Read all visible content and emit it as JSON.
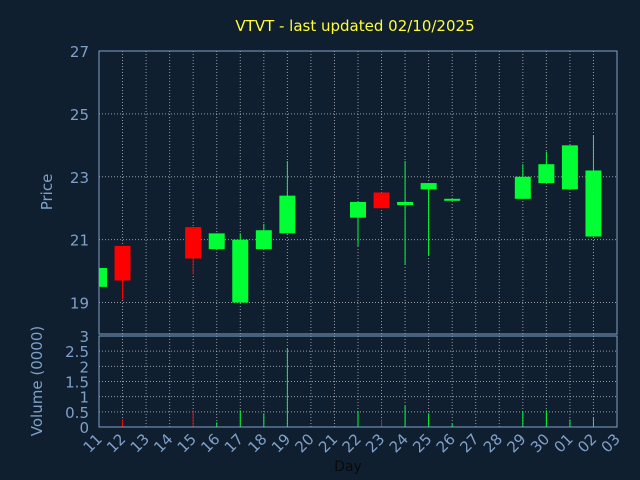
{
  "chart_data": {
    "type": "candlestick",
    "title": "VTVT - last updated 02/10/2025",
    "xlabel": "Day",
    "colors": {
      "background": "#0f1f30",
      "up": "#00ff33",
      "down": "#ff0000",
      "title": "#ffff33",
      "axis_text": "#7fa0c8",
      "xlabel": "#0a0a0a"
    },
    "x_ticks": [
      "11",
      "12",
      "13",
      "14",
      "15",
      "16",
      "17",
      "18",
      "19",
      "20",
      "21",
      "22",
      "23",
      "24",
      "25",
      "26",
      "27",
      "28",
      "29",
      "30",
      "01",
      "02",
      "03"
    ],
    "price": {
      "ylabel": "Price",
      "ylim": [
        18,
        27
      ],
      "y_ticks": [
        19,
        21,
        23,
        25,
        27
      ],
      "grid": true
    },
    "volume": {
      "ylabel": "Volume (0000)",
      "ylim": [
        0,
        3
      ],
      "y_ticks": [
        0,
        0.5,
        1,
        1.5,
        2,
        2.5,
        3
      ],
      "y_tick_labels": [
        "0",
        "0.5",
        "1",
        "1.5",
        "2",
        "2.5",
        "3"
      ],
      "grid": true
    },
    "candles": [
      {
        "day": "11",
        "open": 19.5,
        "high": 20.1,
        "low": 19.4,
        "close": 20.1,
        "volume": 0.02
      },
      {
        "day": "12",
        "open": 20.8,
        "high": 20.8,
        "low": 19.1,
        "close": 19.7,
        "volume": 0.25
      },
      {
        "day": "15",
        "open": 21.4,
        "high": 21.4,
        "low": 19.9,
        "close": 20.4,
        "volume": 0.55
      },
      {
        "day": "16",
        "open": 20.7,
        "high": 21.2,
        "low": 20.7,
        "close": 21.2,
        "volume": 0.15
      },
      {
        "day": "17",
        "open": 19.0,
        "high": 21.2,
        "low": 19.0,
        "close": 21.0,
        "volume": 0.55
      },
      {
        "day": "18",
        "open": 20.7,
        "high": 21.5,
        "low": 20.7,
        "close": 21.3,
        "volume": 0.45
      },
      {
        "day": "19",
        "open": 21.2,
        "high": 23.5,
        "low": 21.2,
        "close": 22.4,
        "volume": 2.6
      },
      {
        "day": "22",
        "open": 21.7,
        "high": 22.2,
        "low": 20.8,
        "close": 22.2,
        "volume": 0.5
      },
      {
        "day": "23",
        "open": 22.5,
        "high": 22.5,
        "low": 22.0,
        "close": 22.0,
        "volume": 0.25
      },
      {
        "day": "24",
        "open": 22.1,
        "high": 23.5,
        "low": 20.2,
        "close": 22.2,
        "volume": 0.7
      },
      {
        "day": "25",
        "open": 22.6,
        "high": 22.8,
        "low": 20.5,
        "close": 22.8,
        "volume": 0.45
      },
      {
        "day": "26",
        "open": 22.3,
        "high": 22.3,
        "low": 22.3,
        "close": 22.3,
        "volume": 0.1
      },
      {
        "day": "29",
        "open": 22.3,
        "high": 23.4,
        "low": 22.3,
        "close": 23.0,
        "volume": 0.5
      },
      {
        "day": "30",
        "open": 22.8,
        "high": 23.8,
        "low": 22.8,
        "close": 23.4,
        "volume": 0.55
      },
      {
        "day": "01",
        "open": 22.6,
        "high": 24.0,
        "low": 22.6,
        "close": 24.0,
        "volume": 0.25
      },
      {
        "day": "02",
        "open": 21.1,
        "high": 24.3,
        "low": 21.1,
        "close": 23.2,
        "volume": 0.3
      }
    ]
  }
}
